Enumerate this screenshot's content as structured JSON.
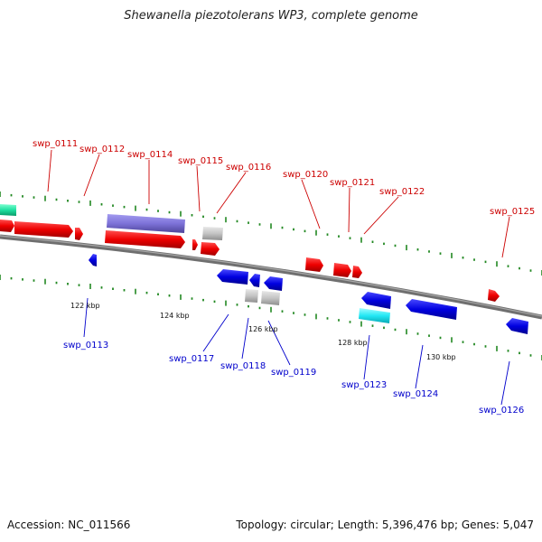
{
  "title": "Shewanella piezotolerans WP3, complete genome",
  "footer": {
    "accession": "Accession: NC_011566",
    "stats": "Topology: circular; Length: 5,396,476 bp; Genes: 5,047"
  },
  "colors": {
    "plus_strand": "#e60000",
    "minus_strand": "#0000dd",
    "backbone": "#808080",
    "ticks": "#228822",
    "label_plus": "#cc0000",
    "label_minus": "#0000cc",
    "kbp_label": "#111111"
  },
  "kbp_labels": [
    "122 kbp",
    "124 kbp",
    "126 kbp",
    "128 kbp",
    "130 kbp"
  ],
  "genes": [
    {
      "id": "swp_0111",
      "label": "swp_0111"
    },
    {
      "id": "swp_0112",
      "label": "swp_0112"
    },
    {
      "id": "swp_0113",
      "label": "swp_0113"
    },
    {
      "id": "swp_0114",
      "label": "swp_0114"
    },
    {
      "id": "swp_0115",
      "label": "swp_0115"
    },
    {
      "id": "swp_0116",
      "label": "swp_0116"
    },
    {
      "id": "swp_0117",
      "label": "swp_0117"
    },
    {
      "id": "swp_0118",
      "label": "swp_0118"
    },
    {
      "id": "swp_0119",
      "label": "swp_0119"
    },
    {
      "id": "swp_0120",
      "label": "swp_0120"
    },
    {
      "id": "swp_0121",
      "label": "swp_0121"
    },
    {
      "id": "swp_0122",
      "label": "swp_0122"
    },
    {
      "id": "swp_0123",
      "label": "swp_0123"
    },
    {
      "id": "swp_0124",
      "label": "swp_0124"
    },
    {
      "id": "swp_0125",
      "label": "swp_0125"
    },
    {
      "id": "swp_0126",
      "label": "swp_0126"
    }
  ]
}
